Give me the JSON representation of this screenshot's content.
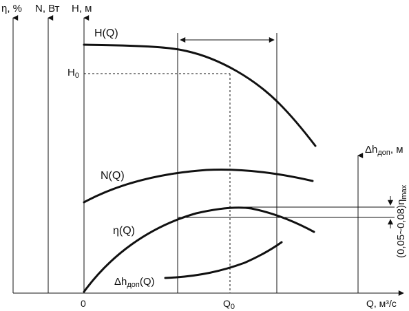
{
  "axes": {
    "efficiency": "η, %",
    "power": "N, Вт",
    "head": "H, м",
    "flow": "Q, м³/с",
    "npsh_base": "Δh",
    "npsh_sub": "доп",
    "npsh_unit": ", м"
  },
  "ticks": {
    "origin": "0",
    "q0_base": "Q",
    "q0_sub": "0"
  },
  "curves": {
    "head": "H(Q)",
    "power": "N(Q)",
    "efficiency": "η(Q)",
    "npsh_base": "Δh",
    "npsh_sub": "доп",
    "npsh_arg": "(Q)"
  },
  "markers": {
    "h0_base": "H",
    "h0_sub": "0"
  },
  "annotation": {
    "range_base": "(0,05~0,08)η",
    "range_sub": "max"
  }
}
